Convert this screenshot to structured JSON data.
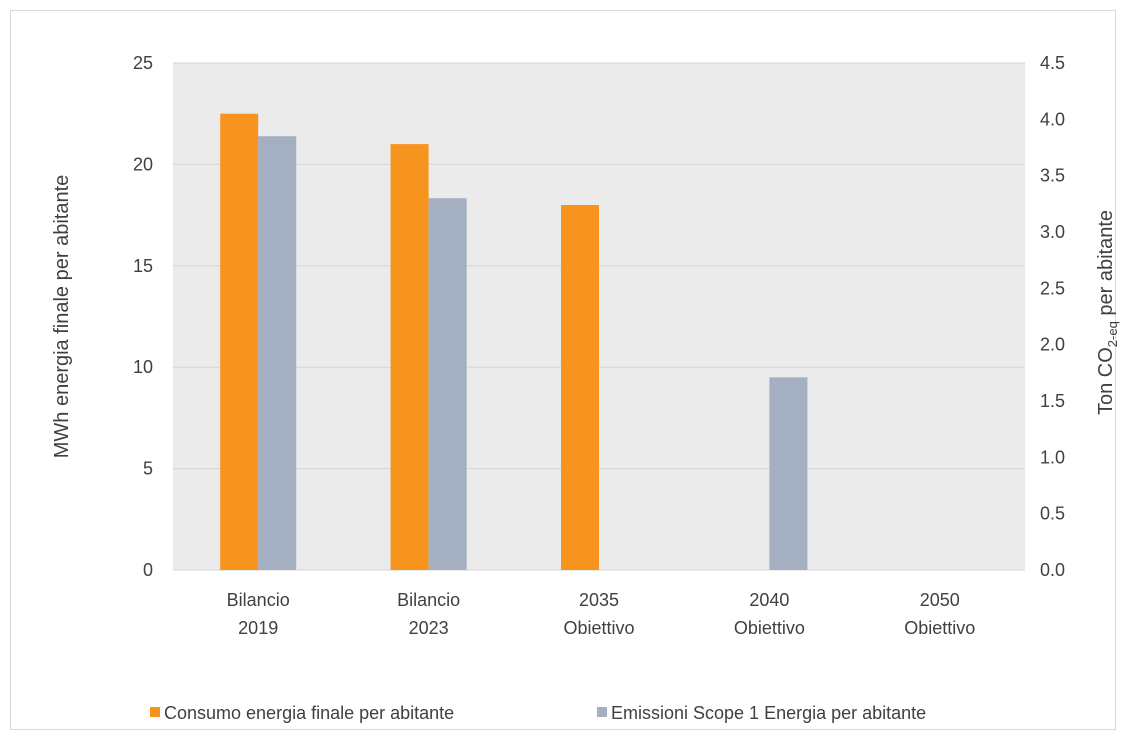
{
  "chart_data": {
    "type": "bar",
    "categories": [
      [
        "Bilancio",
        "2019"
      ],
      [
        "Bilancio",
        "2023"
      ],
      [
        "2035",
        "Obiettivo"
      ],
      [
        "2040",
        "Obiettivo"
      ],
      [
        "2050",
        "Obiettivo"
      ]
    ],
    "series": [
      {
        "name": "Consumo energia finale per abitante",
        "axis": "left",
        "color": "#F7941D",
        "values": [
          22.5,
          21.0,
          18.0,
          null,
          null
        ]
      },
      {
        "name": "Emissioni Scope 1 Energia per abitante",
        "axis": "right",
        "color": "#A5AFC2",
        "values": [
          3.85,
          3.3,
          null,
          1.71,
          null
        ]
      }
    ],
    "y_left": {
      "label": "MWh energia finale per abitante",
      "lim": [
        0,
        25
      ],
      "ticks": [
        "0",
        "5",
        "10",
        "15",
        "20",
        "25"
      ]
    },
    "y_right": {
      "label_prefix": "Ton CO",
      "label_subscript": "2-eq",
      "label_suffix": " per abitante",
      "lim": [
        0,
        4.5
      ],
      "ticks": [
        "0.0",
        "0.5",
        "1.0",
        "1.5",
        "2.0",
        "2.5",
        "3.0",
        "3.5",
        "4.0",
        "4.5"
      ]
    },
    "plot_background": "#EBEBEB",
    "gridline_color": "#D4D4D4",
    "grid": true,
    "legend_position": "bottom"
  }
}
